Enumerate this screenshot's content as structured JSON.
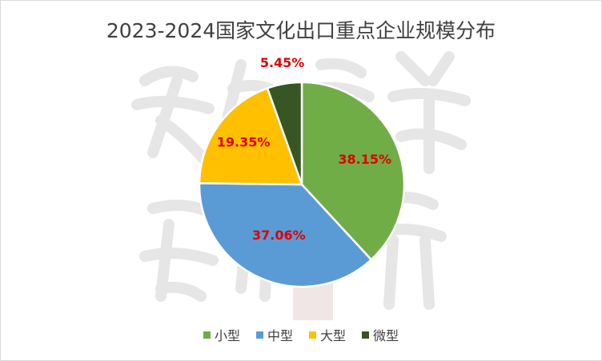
{
  "chart_data": {
    "type": "pie",
    "title": "2023-2024国家文化出口重点企业规模分布",
    "categories": [
      "小型",
      "中型",
      "大型",
      "微型"
    ],
    "values": [
      38.15,
      37.06,
      19.35,
      5.45
    ],
    "data_labels": [
      "38.15%",
      "37.06%",
      "19.35%",
      "5.45%"
    ],
    "colors": [
      "#70ad47",
      "#5b9bd5",
      "#ffc000",
      "#375623"
    ],
    "label_color": "#e00000",
    "legend_position": "bottom",
    "start_angle": "12 o'clock",
    "direction": "clockwise"
  }
}
